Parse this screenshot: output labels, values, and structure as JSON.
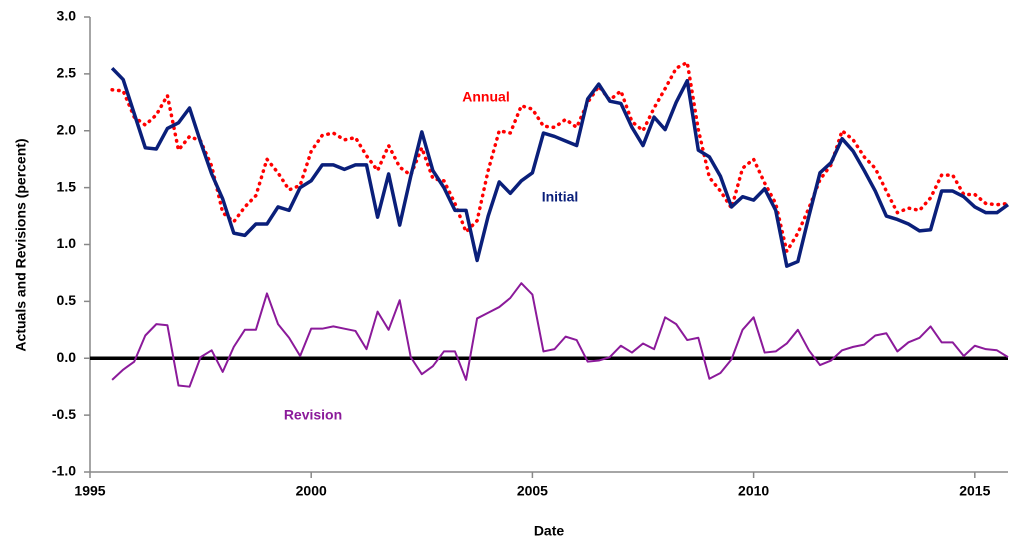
{
  "chart_data": {
    "type": "line",
    "x_label": "Date",
    "y_label": "Actuals and Revisions (percent)",
    "x": [
      1995.5,
      1995.75,
      1996,
      1996.25,
      1996.5,
      1996.75,
      1997,
      1997.25,
      1997.5,
      1997.75,
      1998,
      1998.25,
      1998.5,
      1998.75,
      1999,
      1999.25,
      1999.5,
      1999.75,
      2000,
      2000.25,
      2000.5,
      2000.75,
      2001,
      2001.25,
      2001.5,
      2001.75,
      2002,
      2002.25,
      2002.5,
      2002.75,
      2003,
      2003.25,
      2003.5,
      2003.75,
      2004,
      2004.25,
      2004.5,
      2004.75,
      2005,
      2005.25,
      2005.5,
      2005.75,
      2006,
      2006.25,
      2006.5,
      2006.75,
      2007,
      2007.25,
      2007.5,
      2007.75,
      2008,
      2008.25,
      2008.5,
      2008.75,
      2009,
      2009.25,
      2009.5,
      2009.75,
      2010,
      2010.25,
      2010.5,
      2010.75,
      2011,
      2011.25,
      2011.5,
      2011.75,
      2012,
      2012.25,
      2012.5,
      2012.75,
      2013,
      2013.25,
      2013.5,
      2013.75,
      2014,
      2014.25,
      2014.5,
      2014.75,
      2015,
      2015.25,
      2015.5,
      2015.75
    ],
    "series": [
      {
        "name": "Annual",
        "color": "#ff0000",
        "style": "dotted",
        "values": [
          2.36,
          2.35,
          2.12,
          2.05,
          2.14,
          2.31,
          1.83,
          1.95,
          1.91,
          1.69,
          1.28,
          1.2,
          1.33,
          1.43,
          1.75,
          1.63,
          1.48,
          1.52,
          1.82,
          1.96,
          1.98,
          1.92,
          1.94,
          1.78,
          1.65,
          1.87,
          1.68,
          1.61,
          1.85,
          1.58,
          1.56,
          1.36,
          1.11,
          1.21,
          1.65,
          2.0,
          1.98,
          2.22,
          2.19,
          2.04,
          2.03,
          2.1,
          2.03,
          2.25,
          2.39,
          2.27,
          2.35,
          2.08,
          2.0,
          2.2,
          2.37,
          2.55,
          2.6,
          2.01,
          1.59,
          1.47,
          1.32,
          1.67,
          1.75,
          1.54,
          1.36,
          0.94,
          1.1,
          1.32,
          1.57,
          1.7,
          2.0,
          1.92,
          1.77,
          1.67,
          1.47,
          1.28,
          1.32,
          1.3,
          1.41,
          1.61,
          1.61,
          1.44,
          1.44,
          1.36,
          1.35,
          1.36
        ]
      },
      {
        "name": "Initial",
        "color": "#0a1f7a",
        "style": "solid",
        "values": [
          2.55,
          2.45,
          2.15,
          1.85,
          1.84,
          2.02,
          2.07,
          2.2,
          1.9,
          1.62,
          1.4,
          1.1,
          1.08,
          1.18,
          1.18,
          1.33,
          1.3,
          1.5,
          1.56,
          1.7,
          1.7,
          1.66,
          1.7,
          1.7,
          1.24,
          1.62,
          1.17,
          1.6,
          1.99,
          1.65,
          1.5,
          1.3,
          1.3,
          0.86,
          1.25,
          1.55,
          1.45,
          1.56,
          1.63,
          1.98,
          1.95,
          1.91,
          1.87,
          2.28,
          2.41,
          2.26,
          2.24,
          2.03,
          1.87,
          2.12,
          2.01,
          2.25,
          2.44,
          1.83,
          1.77,
          1.6,
          1.33,
          1.42,
          1.39,
          1.49,
          1.3,
          0.81,
          0.85,
          1.25,
          1.63,
          1.72,
          1.93,
          1.82,
          1.65,
          1.47,
          1.25,
          1.22,
          1.18,
          1.12,
          1.13,
          1.47,
          1.47,
          1.42,
          1.33,
          1.28,
          1.28,
          1.35
        ]
      },
      {
        "name": "Revision",
        "color": "#8b1a9a",
        "style": "thin",
        "values": [
          -0.19,
          -0.1,
          -0.03,
          0.2,
          0.3,
          0.29,
          -0.24,
          -0.25,
          0.01,
          0.07,
          -0.12,
          0.1,
          0.25,
          0.25,
          0.57,
          0.3,
          0.18,
          0.02,
          0.26,
          0.26,
          0.28,
          0.26,
          0.24,
          0.08,
          0.41,
          0.25,
          0.51,
          0.01,
          -0.14,
          -0.07,
          0.06,
          0.06,
          -0.19,
          0.35,
          0.4,
          0.45,
          0.53,
          0.66,
          0.56,
          0.06,
          0.08,
          0.19,
          0.16,
          -0.03,
          -0.02,
          0.01,
          0.11,
          0.05,
          0.13,
          0.08,
          0.36,
          0.3,
          0.16,
          0.18,
          -0.18,
          -0.13,
          -0.01,
          0.25,
          0.36,
          0.05,
          0.06,
          0.13,
          0.25,
          0.07,
          -0.06,
          -0.02,
          0.07,
          0.1,
          0.12,
          0.2,
          0.22,
          0.06,
          0.14,
          0.18,
          0.28,
          0.14,
          0.14,
          0.02,
          0.11,
          0.08,
          0.07,
          0.01
        ]
      }
    ],
    "xlim": [
      1995,
      2015.75
    ],
    "xticks": [
      1995,
      2000,
      2005,
      2010,
      2015
    ],
    "ylim": [
      -1,
      3
    ],
    "yticks": [
      {
        "value": -1,
        "label": "-1.0"
      },
      {
        "value": -0.5,
        "label": "-0.5"
      },
      {
        "value": 0,
        "label": "0.0"
      },
      {
        "value": 0.5,
        "label": "0.5"
      },
      {
        "value": 1,
        "label": "1.0"
      },
      {
        "value": 1.5,
        "label": "1.5"
      },
      {
        "value": 2,
        "label": "2.0"
      },
      {
        "value": 2.5,
        "label": "2.5"
      },
      {
        "value": 3,
        "label": "3.0"
      }
    ],
    "zero_line": true
  }
}
